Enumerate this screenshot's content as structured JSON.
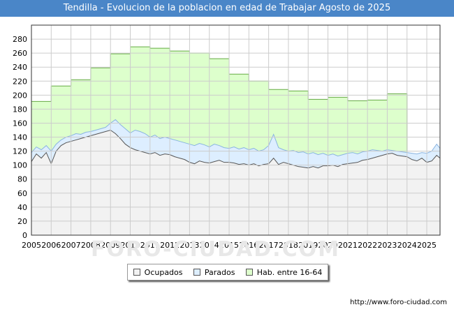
{
  "chart_data": {
    "type": "area",
    "title": "Tendilla - Evolucion de la poblacion en edad de Trabajar Agosto de 2025",
    "xlabel": "",
    "ylabel": "",
    "xlim": [
      2005,
      2025.67
    ],
    "ylim": [
      0,
      300
    ],
    "yticks": [
      0,
      20,
      40,
      60,
      80,
      100,
      120,
      140,
      160,
      180,
      200,
      220,
      240,
      260,
      280
    ],
    "xticks": [
      "2005",
      "2006",
      "2007",
      "2008",
      "2009",
      "2010",
      "2011",
      "2012",
      "2013",
      "2014",
      "2015",
      "2016",
      "2017",
      "2018",
      "2019",
      "2020",
      "2021",
      "2022",
      "2023",
      "2024",
      "2025"
    ],
    "grid": true,
    "legend_position": "bottom",
    "colors": {
      "ocupados_fill": "#f2f2f2",
      "ocupados_line": "#555555",
      "parados_fill": "#ddeeff",
      "parados_line": "#8ab4e0",
      "hab_fill": "#ddffcc",
      "hab_line": "#66aa44"
    },
    "series": [
      {
        "name": "Hab. entre 16-64",
        "step": true,
        "x": [
          2005,
          2006,
          2007,
          2008,
          2009,
          2010,
          2011,
          2012,
          2013,
          2014,
          2015,
          2016,
          2017,
          2018,
          2019,
          2020,
          2021,
          2022,
          2023,
          2024
        ],
        "values": [
          191,
          213,
          222,
          239,
          259,
          269,
          267,
          263,
          260,
          252,
          230,
          220,
          208,
          206,
          194,
          197,
          192,
          193,
          202,
          202
        ]
      },
      {
        "name": "Parados",
        "x": [
          2005,
          2005.25,
          2005.5,
          2005.75,
          2006,
          2006.25,
          2006.5,
          2006.75,
          2007,
          2007.25,
          2007.5,
          2007.75,
          2008,
          2008.25,
          2008.5,
          2008.75,
          2009,
          2009.25,
          2009.5,
          2009.75,
          2010,
          2010.25,
          2010.5,
          2010.75,
          2011,
          2011.25,
          2011.5,
          2011.75,
          2012,
          2012.25,
          2012.5,
          2012.75,
          2013,
          2013.25,
          2013.5,
          2013.75,
          2014,
          2014.25,
          2014.5,
          2014.75,
          2015,
          2015.25,
          2015.5,
          2015.75,
          2016,
          2016.25,
          2016.5,
          2016.75,
          2017,
          2017.25,
          2017.5,
          2017.75,
          2018,
          2018.25,
          2018.5,
          2018.75,
          2019,
          2019.25,
          2019.5,
          2019.75,
          2020,
          2020.25,
          2020.5,
          2020.75,
          2021,
          2021.25,
          2021.5,
          2021.75,
          2022,
          2022.25,
          2022.5,
          2022.75,
          2023,
          2023.25,
          2023.5,
          2023.75,
          2024,
          2024.25,
          2024.5,
          2024.75,
          2025,
          2025.25,
          2025.5,
          2025.67
        ],
        "values": [
          118,
          126,
          122,
          128,
          120,
          130,
          136,
          140,
          142,
          145,
          144,
          147,
          148,
          150,
          152,
          154,
          160,
          165,
          158,
          152,
          146,
          150,
          148,
          145,
          140,
          143,
          138,
          140,
          138,
          136,
          134,
          132,
          130,
          128,
          131,
          129,
          126,
          130,
          128,
          125,
          124,
          126,
          123,
          125,
          122,
          124,
          120,
          122,
          128,
          144,
          125,
          122,
          120,
          121,
          118,
          119,
          116,
          118,
          115,
          117,
          114,
          116,
          113,
          115,
          117,
          118,
          116,
          119,
          120,
          122,
          121,
          120,
          122,
          121,
          120,
          119,
          118,
          117,
          116,
          118,
          117,
          120,
          130,
          124
        ]
      },
      {
        "name": "Ocupados",
        "x": [
          2005,
          2005.25,
          2005.5,
          2005.75,
          2006,
          2006.25,
          2006.5,
          2006.75,
          2007,
          2007.25,
          2007.5,
          2007.75,
          2008,
          2008.25,
          2008.5,
          2008.75,
          2009,
          2009.25,
          2009.5,
          2009.75,
          2010,
          2010.25,
          2010.5,
          2010.75,
          2011,
          2011.25,
          2011.5,
          2011.75,
          2012,
          2012.25,
          2012.5,
          2012.75,
          2013,
          2013.25,
          2013.5,
          2013.75,
          2014,
          2014.25,
          2014.5,
          2014.75,
          2015,
          2015.25,
          2015.5,
          2015.75,
          2016,
          2016.25,
          2016.5,
          2016.75,
          2017,
          2017.25,
          2017.5,
          2017.75,
          2018,
          2018.25,
          2018.5,
          2018.75,
          2019,
          2019.25,
          2019.5,
          2019.75,
          2020,
          2020.25,
          2020.5,
          2020.75,
          2021,
          2021.25,
          2021.5,
          2021.75,
          2022,
          2022.25,
          2022.5,
          2022.75,
          2023,
          2023.25,
          2023.5,
          2023.75,
          2024,
          2024.25,
          2024.5,
          2024.75,
          2025,
          2025.25,
          2025.5,
          2025.67
        ],
        "values": [
          105,
          116,
          110,
          118,
          102,
          120,
          128,
          132,
          134,
          136,
          138,
          140,
          142,
          144,
          146,
          148,
          150,
          145,
          138,
          130,
          125,
          122,
          120,
          118,
          116,
          118,
          114,
          116,
          115,
          112,
          110,
          108,
          104,
          102,
          106,
          104,
          103,
          105,
          107,
          104,
          104,
          103,
          101,
          102,
          100,
          102,
          99,
          101,
          102,
          110,
          101,
          104,
          102,
          100,
          98,
          97,
          96,
          98,
          96,
          99,
          99,
          100,
          98,
          101,
          102,
          103,
          104,
          107,
          108,
          110,
          112,
          114,
          116,
          117,
          114,
          113,
          112,
          108,
          106,
          110,
          104,
          106,
          114,
          110
        ]
      }
    ]
  },
  "legend": {
    "items": [
      {
        "label": "Ocupados"
      },
      {
        "label": "Parados"
      },
      {
        "label": "Hab. entre 16-64"
      }
    ]
  },
  "footer": {
    "source": "http://www.foro-ciudad.com",
    "watermark": "FORO-CIUDAD.COM"
  }
}
